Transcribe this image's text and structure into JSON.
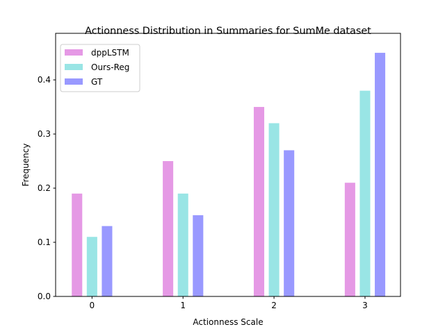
{
  "chart_data": {
    "type": "bar",
    "title": "Actionness Distribution in Summaries for SumMe dataset",
    "xlabel": "Actionness Scale",
    "ylabel": "Frequency",
    "categories": [
      "0",
      "1",
      "2",
      "3"
    ],
    "yticks": [
      "0.0",
      "0.1",
      "0.2",
      "0.3",
      "0.4"
    ],
    "ylim": [
      0,
      0.486
    ],
    "xlim": [
      -0.4,
      3.39
    ],
    "grid": false,
    "legend_position": "top-left",
    "series": [
      {
        "name": "dppLSTM",
        "color": "#e599e5",
        "values": [
          0.19,
          0.25,
          0.35,
          0.21
        ]
      },
      {
        "name": "Ours-Reg",
        "color": "#99e5e5",
        "values": [
          0.11,
          0.19,
          0.32,
          0.38
        ]
      },
      {
        "name": "GT",
        "color": "#9999ff",
        "values": [
          0.13,
          0.15,
          0.27,
          0.45
        ]
      }
    ]
  }
}
